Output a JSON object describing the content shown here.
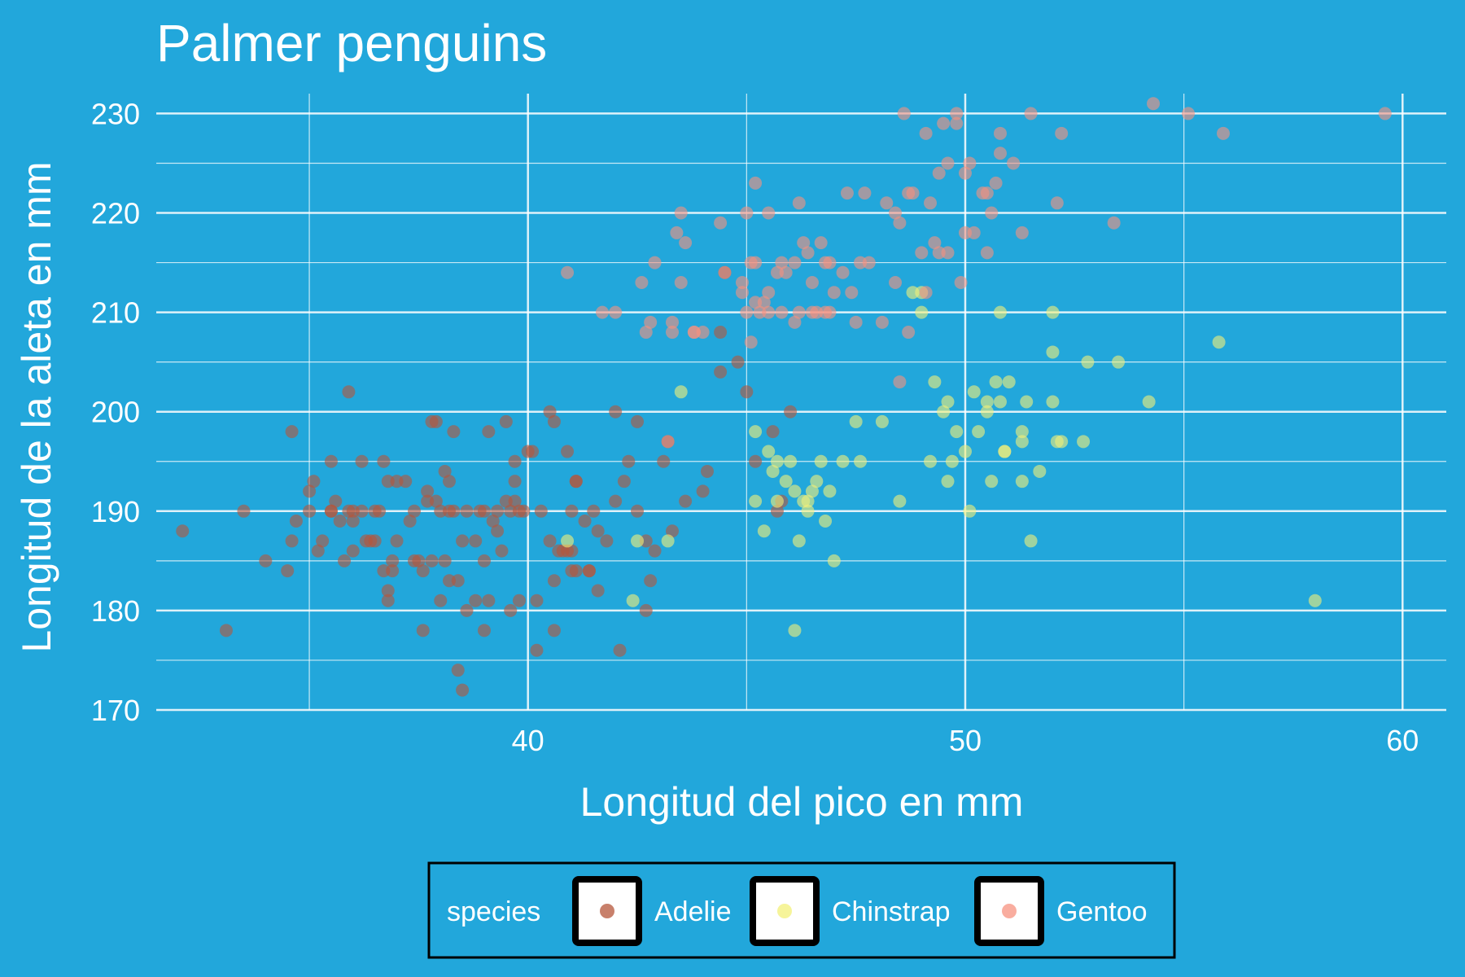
{
  "chart_data": {
    "type": "scatter",
    "title": "Palmer penguins",
    "xlabel": "Longitud del pico en mm",
    "ylabel": "Longitud de la aleta en mm",
    "xlim": [
      31.5,
      61
    ],
    "ylim": [
      170,
      232
    ],
    "xticks": [
      40,
      50,
      60
    ],
    "yticks": [
      170,
      180,
      190,
      200,
      210,
      220,
      230
    ],
    "grid": true,
    "legend_position": "bottom",
    "legend_title": "species",
    "background_color": "#22a7db",
    "series": [
      {
        "name": "Adelie",
        "color": "#b5553a",
        "points": [
          [
            32.1,
            188
          ],
          [
            33.1,
            178
          ],
          [
            33.5,
            190
          ],
          [
            34.0,
            185
          ],
          [
            34.5,
            184
          ],
          [
            34.6,
            187
          ],
          [
            34.6,
            198
          ],
          [
            34.7,
            189
          ],
          [
            35.0,
            190
          ],
          [
            35.0,
            192
          ],
          [
            35.1,
            193
          ],
          [
            35.2,
            186
          ],
          [
            35.3,
            187
          ],
          [
            35.5,
            195
          ],
          [
            35.5,
            190
          ],
          [
            35.6,
            191
          ],
          [
            35.7,
            189
          ],
          [
            35.8,
            185
          ],
          [
            35.9,
            202
          ],
          [
            35.9,
            190
          ],
          [
            36.0,
            186
          ],
          [
            36.0,
            189
          ],
          [
            36.2,
            195
          ],
          [
            36.2,
            190
          ],
          [
            36.3,
            187
          ],
          [
            36.4,
            187
          ],
          [
            36.5,
            187
          ],
          [
            36.6,
            190
          ],
          [
            36.7,
            195
          ],
          [
            36.7,
            184
          ],
          [
            36.8,
            181
          ],
          [
            36.8,
            182
          ],
          [
            36.9,
            185
          ],
          [
            36.9,
            184
          ],
          [
            37.0,
            193
          ],
          [
            37.0,
            187
          ],
          [
            37.2,
            193
          ],
          [
            37.3,
            189
          ],
          [
            37.4,
            185
          ],
          [
            37.5,
            185
          ],
          [
            37.6,
            184
          ],
          [
            37.6,
            178
          ],
          [
            37.7,
            192
          ],
          [
            37.7,
            191
          ],
          [
            37.8,
            199
          ],
          [
            37.8,
            185
          ],
          [
            37.9,
            199
          ],
          [
            38.0,
            181
          ],
          [
            38.1,
            194
          ],
          [
            38.1,
            185
          ],
          [
            38.2,
            183
          ],
          [
            38.2,
            193
          ],
          [
            38.3,
            198
          ],
          [
            38.3,
            190
          ],
          [
            38.4,
            174
          ],
          [
            38.5,
            172
          ],
          [
            38.6,
            180
          ],
          [
            38.6,
            190
          ],
          [
            38.8,
            187
          ],
          [
            38.8,
            181
          ],
          [
            38.9,
            190
          ],
          [
            39.0,
            185
          ],
          [
            39.0,
            190
          ],
          [
            39.1,
            198
          ],
          [
            39.2,
            189
          ],
          [
            39.3,
            188
          ],
          [
            39.5,
            199
          ],
          [
            39.5,
            191
          ],
          [
            39.6,
            190
          ],
          [
            39.6,
            180
          ],
          [
            39.7,
            195
          ],
          [
            39.7,
            191
          ],
          [
            39.8,
            181
          ],
          [
            39.8,
            190
          ],
          [
            39.9,
            190
          ],
          [
            40.0,
            196
          ],
          [
            40.1,
            196
          ],
          [
            40.2,
            181
          ],
          [
            40.3,
            190
          ],
          [
            40.5,
            187
          ],
          [
            40.6,
            183
          ],
          [
            40.6,
            178
          ],
          [
            40.7,
            186
          ],
          [
            40.8,
            186
          ],
          [
            40.9,
            186
          ],
          [
            40.9,
            196
          ],
          [
            41.0,
            186
          ],
          [
            41.0,
            190
          ],
          [
            41.1,
            193
          ],
          [
            41.1,
            193
          ],
          [
            41.1,
            184
          ],
          [
            41.3,
            189
          ],
          [
            41.4,
            184
          ],
          [
            41.5,
            190
          ],
          [
            41.6,
            188
          ],
          [
            41.8,
            187
          ],
          [
            42.0,
            200
          ],
          [
            42.1,
            176
          ],
          [
            42.2,
            193
          ],
          [
            42.3,
            195
          ],
          [
            42.5,
            199
          ],
          [
            42.7,
            180
          ],
          [
            42.7,
            187
          ],
          [
            42.8,
            183
          ],
          [
            42.9,
            186
          ],
          [
            43.1,
            195
          ],
          [
            43.2,
            197
          ],
          [
            44.0,
            192
          ],
          [
            44.1,
            194
          ],
          [
            44.4,
            204
          ],
          [
            44.8,
            205
          ],
          [
            45.0,
            202
          ],
          [
            45.2,
            195
          ],
          [
            45.6,
            198
          ],
          [
            45.8,
            191
          ],
          [
            46.0,
            200
          ],
          [
            45.7,
            190
          ],
          [
            44.5,
            214
          ],
          [
            44.4,
            208
          ],
          [
            43.6,
            191
          ],
          [
            43.3,
            188
          ],
          [
            42.5,
            190
          ],
          [
            41.6,
            182
          ],
          [
            40.6,
            199
          ],
          [
            39.7,
            193
          ],
          [
            38.0,
            190
          ],
          [
            38.2,
            190
          ],
          [
            36.0,
            190
          ],
          [
            35.5,
            190
          ],
          [
            37.4,
            190
          ],
          [
            36.5,
            190
          ],
          [
            38.4,
            183
          ],
          [
            39.1,
            181
          ],
          [
            39.3,
            190
          ],
          [
            40.5,
            200
          ],
          [
            40.2,
            176
          ],
          [
            39.0,
            178
          ],
          [
            37.9,
            191
          ],
          [
            36.8,
            193
          ],
          [
            38.5,
            187
          ],
          [
            39.4,
            186
          ],
          [
            41.0,
            184
          ],
          [
            41.4,
            184
          ],
          [
            42.0,
            191
          ]
        ]
      },
      {
        "name": "Chinstrap",
        "color": "#f3f078",
        "points": [
          [
            40.9,
            187
          ],
          [
            42.4,
            181
          ],
          [
            42.5,
            187
          ],
          [
            43.2,
            187
          ],
          [
            43.5,
            202
          ],
          [
            45.2,
            198
          ],
          [
            45.2,
            191
          ],
          [
            45.4,
            188
          ],
          [
            45.5,
            196
          ],
          [
            45.6,
            194
          ],
          [
            45.7,
            195
          ],
          [
            45.7,
            191
          ],
          [
            45.9,
            193
          ],
          [
            46.0,
            195
          ],
          [
            46.1,
            178
          ],
          [
            46.2,
            187
          ],
          [
            46.4,
            191
          ],
          [
            46.4,
            190
          ],
          [
            46.5,
            192
          ],
          [
            46.6,
            193
          ],
          [
            46.7,
            195
          ],
          [
            46.8,
            189
          ],
          [
            46.9,
            192
          ],
          [
            47.0,
            185
          ],
          [
            47.5,
            199
          ],
          [
            47.6,
            195
          ],
          [
            48.1,
            199
          ],
          [
            48.5,
            191
          ],
          [
            49.0,
            210
          ],
          [
            49.0,
            212
          ],
          [
            49.2,
            195
          ],
          [
            49.3,
            203
          ],
          [
            49.5,
            200
          ],
          [
            49.6,
            193
          ],
          [
            49.7,
            195
          ],
          [
            49.8,
            198
          ],
          [
            50.0,
            196
          ],
          [
            50.1,
            190
          ],
          [
            50.2,
            202
          ],
          [
            50.3,
            198
          ],
          [
            50.5,
            200
          ],
          [
            50.5,
            201
          ],
          [
            50.6,
            193
          ],
          [
            50.7,
            203
          ],
          [
            50.8,
            201
          ],
          [
            50.8,
            210
          ],
          [
            50.9,
            196
          ],
          [
            51.0,
            203
          ],
          [
            51.3,
            197
          ],
          [
            51.3,
            198
          ],
          [
            51.3,
            193
          ],
          [
            51.4,
            201
          ],
          [
            51.5,
            187
          ],
          [
            51.7,
            194
          ],
          [
            52.0,
            206
          ],
          [
            52.0,
            210
          ],
          [
            52.0,
            201
          ],
          [
            52.1,
            197
          ],
          [
            52.2,
            197
          ],
          [
            52.7,
            197
          ],
          [
            52.8,
            205
          ],
          [
            53.5,
            205
          ],
          [
            54.2,
            201
          ],
          [
            55.8,
            207
          ],
          [
            58.0,
            181
          ],
          [
            46.3,
            191
          ],
          [
            47.2,
            195
          ],
          [
            48.8,
            212
          ],
          [
            49.6,
            201
          ],
          [
            50.9,
            196
          ],
          [
            46.1,
            192
          ]
        ]
      },
      {
        "name": "Gentoo",
        "color": "#f7917f",
        "points": [
          [
            40.9,
            214
          ],
          [
            41.7,
            210
          ],
          [
            42.0,
            210
          ],
          [
            42.6,
            213
          ],
          [
            42.7,
            208
          ],
          [
            42.8,
            209
          ],
          [
            42.9,
            215
          ],
          [
            43.2,
            197
          ],
          [
            43.3,
            208
          ],
          [
            43.3,
            209
          ],
          [
            43.4,
            218
          ],
          [
            43.5,
            213
          ],
          [
            43.5,
            220
          ],
          [
            43.6,
            217
          ],
          [
            43.8,
            208
          ],
          [
            44.0,
            208
          ],
          [
            44.4,
            219
          ],
          [
            44.5,
            214
          ],
          [
            44.9,
            213
          ],
          [
            44.9,
            212
          ],
          [
            45.0,
            220
          ],
          [
            45.1,
            207
          ],
          [
            45.1,
            215
          ],
          [
            45.2,
            211
          ],
          [
            45.2,
            215
          ],
          [
            45.2,
            223
          ],
          [
            45.3,
            210
          ],
          [
            45.4,
            211
          ],
          [
            45.5,
            210
          ],
          [
            45.5,
            212
          ],
          [
            45.5,
            220
          ],
          [
            45.7,
            214
          ],
          [
            45.8,
            210
          ],
          [
            45.8,
            215
          ],
          [
            45.9,
            214
          ],
          [
            46.1,
            215
          ],
          [
            46.2,
            221
          ],
          [
            46.2,
            210
          ],
          [
            46.3,
            217
          ],
          [
            46.4,
            216
          ],
          [
            46.5,
            210
          ],
          [
            46.5,
            213
          ],
          [
            46.6,
            210
          ],
          [
            46.7,
            217
          ],
          [
            46.8,
            215
          ],
          [
            46.8,
            210
          ],
          [
            46.9,
            215
          ],
          [
            47.0,
            212
          ],
          [
            47.2,
            214
          ],
          [
            47.3,
            222
          ],
          [
            47.4,
            212
          ],
          [
            47.5,
            209
          ],
          [
            47.6,
            215
          ],
          [
            47.7,
            222
          ],
          [
            47.8,
            215
          ],
          [
            48.1,
            209
          ],
          [
            48.2,
            221
          ],
          [
            48.4,
            220
          ],
          [
            48.4,
            213
          ],
          [
            48.5,
            203
          ],
          [
            48.5,
            219
          ],
          [
            48.6,
            230
          ],
          [
            48.7,
            222
          ],
          [
            48.7,
            208
          ],
          [
            48.8,
            222
          ],
          [
            49.0,
            216
          ],
          [
            49.1,
            212
          ],
          [
            49.1,
            228
          ],
          [
            49.2,
            221
          ],
          [
            49.3,
            217
          ],
          [
            49.4,
            216
          ],
          [
            49.5,
            229
          ],
          [
            49.6,
            225
          ],
          [
            49.6,
            216
          ],
          [
            49.8,
            229
          ],
          [
            49.8,
            230
          ],
          [
            49.9,
            213
          ],
          [
            50.0,
            224
          ],
          [
            50.0,
            218
          ],
          [
            50.1,
            225
          ],
          [
            50.2,
            218
          ],
          [
            50.4,
            222
          ],
          [
            50.5,
            222
          ],
          [
            50.5,
            216
          ],
          [
            50.7,
            223
          ],
          [
            50.8,
            228
          ],
          [
            51.1,
            225
          ],
          [
            51.3,
            218
          ],
          [
            51.5,
            230
          ],
          [
            52.1,
            221
          ],
          [
            52.2,
            228
          ],
          [
            53.4,
            219
          ],
          [
            54.3,
            231
          ],
          [
            55.1,
            230
          ],
          [
            55.9,
            228
          ],
          [
            59.6,
            230
          ],
          [
            50.8,
            226
          ],
          [
            49.4,
            224
          ],
          [
            50.6,
            220
          ],
          [
            46.9,
            210
          ],
          [
            46.1,
            209
          ],
          [
            45.0,
            210
          ],
          [
            43.8,
            208
          ]
        ]
      }
    ]
  }
}
